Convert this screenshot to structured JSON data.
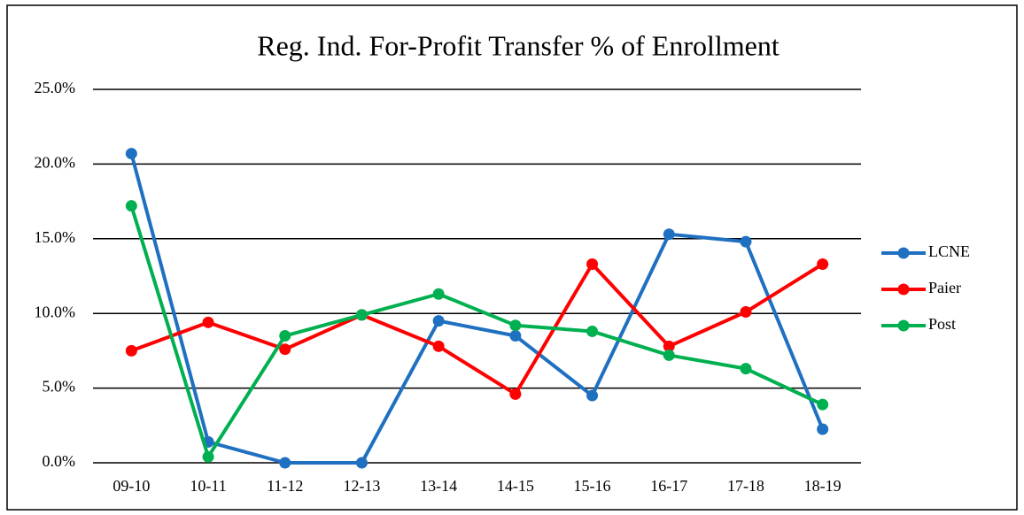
{
  "chart_data": {
    "type": "line",
    "title": "Reg. Ind. For-Profit Transfer % of Enrollment",
    "categories": [
      "09-10",
      "10-11",
      "11-12",
      "12-13",
      "13-14",
      "14-15",
      "15-16",
      "16-17",
      "17-18",
      "18-19"
    ],
    "series": [
      {
        "name": "LCNE",
        "color": "#1f70c1",
        "values": [
          20.7,
          1.4,
          0,
          0,
          9.5,
          8.5,
          4.5,
          15.3,
          14.8,
          2.25
        ]
      },
      {
        "name": "Paier",
        "color": "#ff0000",
        "values": [
          7.5,
          9.4,
          7.6,
          9.9,
          7.8,
          4.6,
          13.3,
          7.8,
          10.1,
          13.3
        ]
      },
      {
        "name": "Post",
        "color": "#00b050",
        "values": [
          17.2,
          0.4,
          8.5,
          9.9,
          11.3,
          9.2,
          8.8,
          7.2,
          6.3,
          3.9
        ]
      }
    ],
    "ylim": [
      0,
      25
    ],
    "yticks": [
      {
        "value": 0,
        "label": "0.0%"
      },
      {
        "value": 5,
        "label": "5.0%"
      },
      {
        "value": 10,
        "label": "10.0%"
      },
      {
        "value": 15,
        "label": "15.0%"
      },
      {
        "value": 20,
        "label": "20.0%"
      },
      {
        "value": 25,
        "label": "25.0%"
      }
    ],
    "grid": true,
    "legend": "right"
  }
}
